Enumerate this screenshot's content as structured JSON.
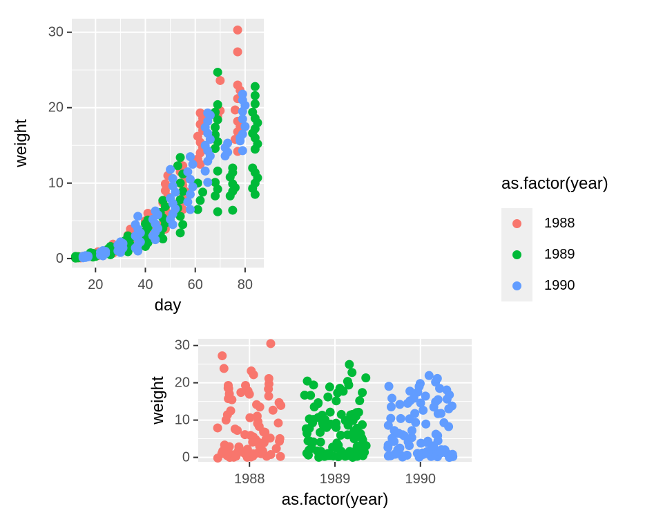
{
  "figure": {
    "background": "#ffffff"
  },
  "palette": {
    "red_1988": "#F8766D",
    "green_1989": "#00BA38",
    "blue_1990": "#619CFF",
    "panel_bg": "#EBEBEB",
    "grid": "#FFFFFF",
    "tick": "#333333",
    "tick_label": "#4D4D4D",
    "title_text": "#000000",
    "legend_key_bg": "#EFEFEF"
  },
  "legend": {
    "title": "as.factor(year)",
    "entries": [
      {
        "label": "1988",
        "color": "#F8766D"
      },
      {
        "label": "1989",
        "color": "#00BA38"
      },
      {
        "label": "1990",
        "color": "#619CFF"
      }
    ]
  },
  "chart_data": [
    {
      "type": "scatter",
      "title": "",
      "xlabel": "day",
      "ylabel": "weight",
      "x_ticks": [
        20,
        40,
        60,
        80
      ],
      "x_minor": [
        30,
        50,
        70
      ],
      "y_ticks": [
        0,
        10,
        20,
        30
      ],
      "y_minor": [
        5,
        15,
        25
      ],
      "xlim": [
        10.5,
        87.5
      ],
      "ylim": [
        -1.2,
        31.8
      ],
      "grid": true,
      "legend_position": "right",
      "legend_title": "as.factor(year)",
      "series": [
        {
          "name": "1988",
          "color_key": "red_1988",
          "points": [
            [
              13,
              0.1
            ],
            [
              14,
              0.12
            ],
            [
              14,
              0.16
            ],
            [
              15,
              0.2
            ],
            [
              14,
              0.22
            ],
            [
              13,
              0.26
            ],
            [
              15,
              0.3
            ],
            [
              14,
              0.08
            ],
            [
              20,
              0.3
            ],
            [
              21,
              0.38
            ],
            [
              21,
              0.45
            ],
            [
              22,
              0.55
            ],
            [
              20,
              0.62
            ],
            [
              21,
              0.7
            ],
            [
              22,
              0.8
            ],
            [
              21,
              0.9
            ],
            [
              27,
              0.7
            ],
            [
              26,
              0.9
            ],
            [
              27,
              1.05
            ],
            [
              28,
              1.2
            ],
            [
              27,
              1.35
            ],
            [
              26,
              1.5
            ],
            [
              28,
              1.7
            ],
            [
              27,
              1.9
            ],
            [
              34,
              1.6
            ],
            [
              33,
              1.9
            ],
            [
              34,
              2.2
            ],
            [
              35,
              2.5
            ],
            [
              34,
              2.8
            ],
            [
              33,
              3.1
            ],
            [
              35,
              3.5
            ],
            [
              34,
              3.9
            ],
            [
              41,
              2.8
            ],
            [
              40,
              3.3
            ],
            [
              41,
              3.7
            ],
            [
              42,
              4.1
            ],
            [
              41,
              4.5
            ],
            [
              40,
              5.0
            ],
            [
              42,
              5.5
            ],
            [
              41,
              6.0
            ],
            [
              48,
              3.9
            ],
            [
              47,
              4.6
            ],
            [
              48,
              5.3
            ],
            [
              49,
              6.0
            ],
            [
              48,
              6.7
            ],
            [
              47,
              7.4
            ],
            [
              49,
              8.2
            ],
            [
              48,
              9.0
            ],
            [
              48,
              9.9
            ],
            [
              49,
              11.0
            ],
            [
              55,
              6.5
            ],
            [
              54,
              7.3
            ],
            [
              55,
              8.1
            ],
            [
              56,
              8.9
            ],
            [
              55,
              9.7
            ],
            [
              56,
              10.6
            ],
            [
              54,
              11.5
            ],
            [
              55,
              12.3
            ],
            [
              62,
              12.5
            ],
            [
              61,
              13.2
            ],
            [
              62,
              14.0
            ],
            [
              63,
              14.7
            ],
            [
              62,
              15.4
            ],
            [
              61,
              16.2
            ],
            [
              63,
              17.0
            ],
            [
              62,
              17.8
            ],
            [
              63,
              18.6
            ],
            [
              62,
              19.3
            ],
            [
              69,
              18.9
            ],
            [
              70,
              19.6
            ],
            [
              70,
              23.6
            ],
            [
              77,
              14.2
            ],
            [
              76,
              15.8
            ],
            [
              77,
              16.8
            ],
            [
              78,
              17.5
            ],
            [
              77,
              18.2
            ],
            [
              76,
              19.7
            ],
            [
              77,
              21.2
            ],
            [
              78,
              22.3
            ],
            [
              77,
              23.0
            ],
            [
              77,
              27.4
            ],
            [
              77,
              30.3
            ]
          ]
        },
        {
          "name": "1989",
          "color_key": "green_1989",
          "points": [
            [
              12,
              0.06
            ],
            [
              13,
              0.09
            ],
            [
              12,
              0.12
            ],
            [
              13,
              0.15
            ],
            [
              12,
              0.18
            ],
            [
              14,
              0.2
            ],
            [
              13,
              0.24
            ],
            [
              12,
              0.28
            ],
            [
              19,
              0.2
            ],
            [
              20,
              0.28
            ],
            [
              19,
              0.36
            ],
            [
              18,
              0.44
            ],
            [
              19,
              0.52
            ],
            [
              20,
              0.6
            ],
            [
              19,
              0.68
            ],
            [
              18,
              0.76
            ],
            [
              26,
              0.5
            ],
            [
              25,
              0.65
            ],
            [
              26,
              0.8
            ],
            [
              27,
              0.95
            ],
            [
              26,
              1.1
            ],
            [
              25,
              1.25
            ],
            [
              27,
              1.42
            ],
            [
              26,
              1.6
            ],
            [
              33,
              0.9
            ],
            [
              32,
              1.2
            ],
            [
              33,
              1.5
            ],
            [
              34,
              1.8
            ],
            [
              33,
              2.1
            ],
            [
              32,
              2.4
            ],
            [
              34,
              2.7
            ],
            [
              33,
              3.0
            ],
            [
              40,
              1.6
            ],
            [
              41,
              2.1
            ],
            [
              40,
              2.6
            ],
            [
              39,
              3.1
            ],
            [
              40,
              3.6
            ],
            [
              41,
              4.1
            ],
            [
              40,
              4.6
            ],
            [
              41,
              5.1
            ],
            [
              47,
              2.6
            ],
            [
              46,
              3.3
            ],
            [
              47,
              4.0
            ],
            [
              48,
              4.7
            ],
            [
              47,
              5.4
            ],
            [
              46,
              6.1
            ],
            [
              48,
              6.9
            ],
            [
              47,
              7.7
            ],
            [
              54,
              3.4
            ],
            [
              55,
              4.5
            ],
            [
              54,
              5.6
            ],
            [
              53,
              6.7
            ],
            [
              54,
              7.8
            ],
            [
              55,
              8.9
            ],
            [
              54,
              10.0
            ],
            [
              55,
              11.2
            ],
            [
              53,
              12.3
            ],
            [
              54,
              13.4
            ],
            [
              61,
              6.5
            ],
            [
              62,
              7.7
            ],
            [
              63,
              8.8
            ],
            [
              61,
              10.0
            ],
            [
              69,
              6.2
            ],
            [
              68,
              8.3
            ],
            [
              69,
              9.2
            ],
            [
              68,
              10.1
            ],
            [
              69,
              11.6
            ],
            [
              68,
              14.6
            ],
            [
              69,
              15.5
            ],
            [
              68,
              16.4
            ],
            [
              68,
              17.4
            ],
            [
              69,
              18.4
            ],
            [
              68,
              19.4
            ],
            [
              69,
              20.4
            ],
            [
              69,
              24.7
            ],
            [
              75,
              6.4
            ],
            [
              74,
              8.3
            ],
            [
              75,
              8.9
            ],
            [
              76,
              9.4
            ],
            [
              75,
              9.9
            ],
            [
              74,
              10.8
            ],
            [
              75,
              11.4
            ],
            [
              75,
              12.0
            ],
            [
              84,
              8.5
            ],
            [
              83,
              9.3
            ],
            [
              84,
              10.0
            ],
            [
              85,
              10.7
            ],
            [
              84,
              11.4
            ],
            [
              83,
              12.0
            ],
            [
              84,
              14.5
            ],
            [
              85,
              15.2
            ],
            [
              84,
              16.0
            ],
            [
              83,
              16.6
            ],
            [
              84,
              17.2
            ],
            [
              85,
              18.0
            ],
            [
              84,
              18.6
            ],
            [
              83,
              19.4
            ],
            [
              84,
              20.5
            ],
            [
              84,
              21.6
            ],
            [
              84,
              22.8
            ]
          ]
        },
        {
          "name": "1990",
          "color_key": "blue_1990",
          "points": [
            [
              15,
              0.1
            ],
            [
              16,
              0.14
            ],
            [
              16,
              0.18
            ],
            [
              17,
              0.22
            ],
            [
              16,
              0.26
            ],
            [
              15,
              0.3
            ],
            [
              17,
              0.34
            ],
            [
              16,
              0.38
            ],
            [
              23,
              0.35
            ],
            [
              22,
              0.45
            ],
            [
              23,
              0.55
            ],
            [
              24,
              0.65
            ],
            [
              23,
              0.75
            ],
            [
              22,
              0.85
            ],
            [
              24,
              0.95
            ],
            [
              23,
              1.05
            ],
            [
              30,
              0.8
            ],
            [
              29,
              1.0
            ],
            [
              30,
              1.2
            ],
            [
              31,
              1.4
            ],
            [
              30,
              1.6
            ],
            [
              29,
              1.8
            ],
            [
              31,
              2.0
            ],
            [
              30,
              2.2
            ],
            [
              37,
              1.0
            ],
            [
              36,
              1.4
            ],
            [
              37,
              1.8
            ],
            [
              38,
              2.2
            ],
            [
              37,
              2.6
            ],
            [
              36,
              3.0
            ],
            [
              38,
              3.4
            ],
            [
              37,
              3.9
            ],
            [
              36,
              4.5
            ],
            [
              37,
              5.6
            ],
            [
              44,
              2.5
            ],
            [
              43,
              3.0
            ],
            [
              44,
              3.5
            ],
            [
              45,
              4.0
            ],
            [
              44,
              4.6
            ],
            [
              43,
              5.2
            ],
            [
              45,
              5.8
            ],
            [
              44,
              6.3
            ],
            [
              51,
              4.5
            ],
            [
              50,
              5.2
            ],
            [
              51,
              5.9
            ],
            [
              52,
              6.6
            ],
            [
              51,
              7.3
            ],
            [
              50,
              8.0
            ],
            [
              52,
              8.8
            ],
            [
              51,
              9.6
            ],
            [
              51,
              10.6
            ],
            [
              50,
              11.8
            ],
            [
              58,
              6.5
            ],
            [
              57,
              7.5
            ],
            [
              58,
              8.5
            ],
            [
              59,
              9.5
            ],
            [
              58,
              10.5
            ],
            [
              57,
              11.5
            ],
            [
              59,
              12.5
            ],
            [
              58,
              13.5
            ],
            [
              65,
              10.1
            ],
            [
              64,
              11.6
            ],
            [
              65,
              12.9
            ],
            [
              66,
              13.6
            ],
            [
              65,
              14.3
            ],
            [
              64,
              15.0
            ],
            [
              66,
              15.8
            ],
            [
              65,
              16.6
            ],
            [
              64,
              17.4
            ],
            [
              65,
              18.2
            ],
            [
              66,
              19.0
            ],
            [
              65,
              19.3
            ],
            [
              72,
              13.6
            ],
            [
              73,
              14.1
            ],
            [
              72,
              14.7
            ],
            [
              73,
              15.3
            ],
            [
              79,
              14.3
            ],
            [
              78,
              15.6
            ],
            [
              79,
              16.5
            ],
            [
              80,
              17.5
            ],
            [
              79,
              18.5
            ],
            [
              78,
              16.0
            ],
            [
              79,
              19.5
            ],
            [
              80,
              20.3
            ],
            [
              79,
              21.0
            ],
            [
              79,
              21.8
            ]
          ]
        }
      ]
    },
    {
      "type": "scatter-jitter",
      "title": "",
      "xlabel": "as.factor(year)",
      "ylabel": "weight",
      "categories": [
        "1988",
        "1989",
        "1990"
      ],
      "y_ticks": [
        0,
        10,
        20,
        30
      ],
      "y_minor": [
        5,
        15,
        25
      ],
      "ylim": [
        -1.2,
        31.8
      ],
      "jitter_width": 0.4,
      "grid": true,
      "note": "same weight values as the top chart, jittered horizontally within each year category",
      "series_weights_from_chart": 0
    }
  ]
}
